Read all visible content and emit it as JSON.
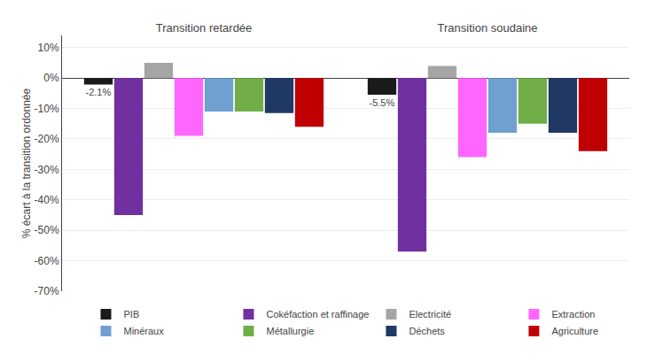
{
  "chart_data": {
    "type": "bar",
    "categories": [
      "Transition retardée",
      "Transition soudaine"
    ],
    "series": [
      {
        "name": "PIB",
        "color": "#1a1a1a",
        "values": [
          -2.1,
          -5.5
        ],
        "value_labels": [
          "-2.1%",
          "-5.5%"
        ],
        "data_labels": true
      },
      {
        "name": "Cokéfaction et raffinage",
        "color": "#7030a0",
        "values": [
          -45.0,
          -57.0
        ]
      },
      {
        "name": "Electricité",
        "color": "#a5a5a5",
        "values": [
          5.0,
          4.0
        ]
      },
      {
        "name": "Extraction",
        "color": "#ff66ff",
        "values": [
          -19.0,
          -26.0
        ]
      },
      {
        "name": "Minéraux",
        "color": "#70a0d0",
        "values": [
          -11.0,
          -18.0
        ]
      },
      {
        "name": "Métallurgie",
        "color": "#70ad47",
        "values": [
          -11.0,
          -15.0
        ]
      },
      {
        "name": "Déchets",
        "color": "#1f3864",
        "values": [
          -11.5,
          -18.0
        ]
      },
      {
        "name": "Agriculture",
        "color": "#c00000",
        "values": [
          -16.0,
          -24.0
        ]
      }
    ],
    "y_label": "% écart à la transition ordonnée",
    "ylim": [
      -70,
      14
    ],
    "yticks": [
      {
        "value": 10,
        "label": "10%"
      },
      {
        "value": 0,
        "label": "0%"
      },
      {
        "value": -10,
        "label": "-10%"
      },
      {
        "value": -20,
        "label": "-20%"
      },
      {
        "value": -30,
        "label": "-30%"
      },
      {
        "value": -40,
        "label": "-40%"
      },
      {
        "value": -50,
        "label": "-50%"
      },
      {
        "value": -60,
        "label": "-60%"
      },
      {
        "value": -70,
        "label": "-70%"
      }
    ],
    "grid": true,
    "legend": "bottom"
  }
}
